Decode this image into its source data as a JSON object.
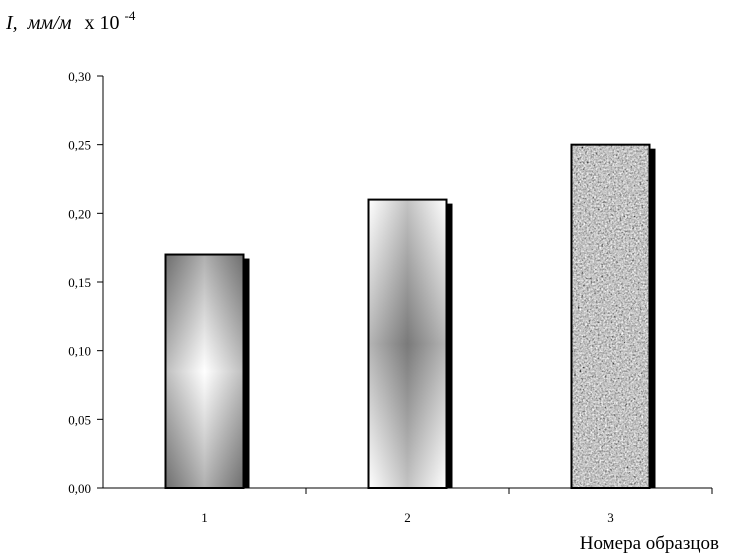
{
  "chart_data": {
    "type": "bar",
    "ylabel": {
      "symbol": "I,",
      "unit": "мм/м",
      "multiplier_prefix": "x 10",
      "multiplier_exponent": "-4"
    },
    "xlabel": "Номера образцов",
    "categories": [
      "1",
      "2",
      "3"
    ],
    "values": [
      0.17,
      0.21,
      0.25
    ],
    "ylim": [
      0,
      0.3
    ],
    "yticks": [
      0,
      0.05,
      0.1,
      0.15,
      0.2,
      0.25,
      0.3
    ],
    "ytick_labels": [
      "0,00",
      "0,05",
      "0,10",
      "0,15",
      "0,20",
      "0,25",
      "0,30"
    ],
    "bar_fills": [
      "gradient-dark-edges-light-center",
      "gradient-light-edges-dark-center",
      "granite-texture"
    ],
    "grid": false,
    "legend": "none"
  }
}
